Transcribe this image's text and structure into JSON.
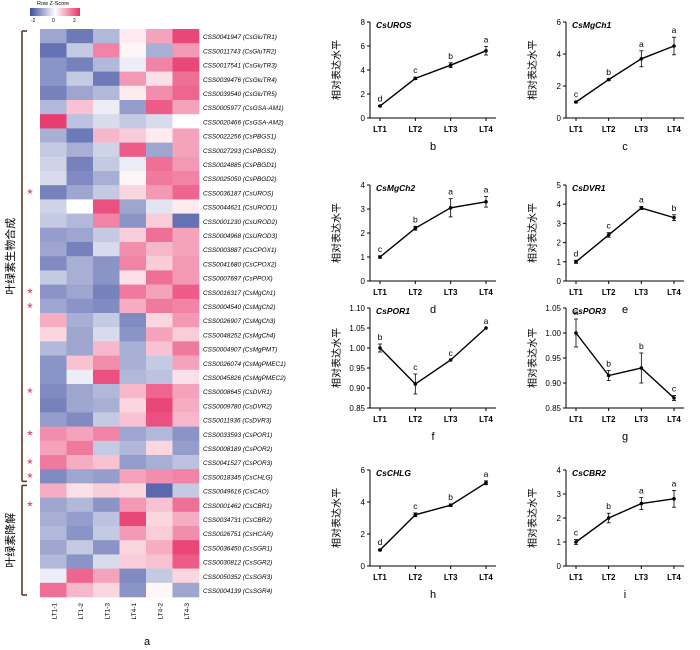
{
  "legend": {
    "title": "Row Z-Score",
    "ticks": [
      "-2",
      "0",
      "2"
    ]
  },
  "heatmap": {
    "columns": [
      "LT1-1",
      "LT1-2",
      "LT1-3",
      "LT4-1",
      "LT4-2",
      "LT4-3"
    ],
    "rows": [
      {
        "label": "CSS0041947 (CsGluTR1)",
        "v": [
          -1.0,
          -1.5,
          -0.8,
          0.2,
          0.9,
          1.8
        ],
        "star": false
      },
      {
        "label": "CSS0011743 (CsGluTR2)",
        "v": [
          -1.6,
          -0.6,
          1.2,
          0.1,
          -0.9,
          1.0
        ],
        "star": false
      },
      {
        "label": "CSS0017541 (CsGluTR3)",
        "v": [
          -1.2,
          -1.4,
          -0.8,
          -0.2,
          1.2,
          1.8
        ],
        "star": false
      },
      {
        "label": "CSS0039476 (CsGluTR4)",
        "v": [
          -1.2,
          -0.6,
          -1.5,
          1.0,
          0.3,
          1.4
        ],
        "star": false
      },
      {
        "label": "CSS0039540 (CsGluTR5)",
        "v": [
          -1.4,
          -1.0,
          -0.8,
          0.2,
          1.1,
          1.5
        ],
        "star": false
      },
      {
        "label": "CSS0005977 (CsGSA-AM1)",
        "v": [
          -0.8,
          0.6,
          -0.2,
          -1.1,
          1.6,
          0.9
        ],
        "star": false
      },
      {
        "label": "CSS0020466 (CsGSA-AM2)",
        "v": [
          1.9,
          -0.7,
          -0.4,
          -0.6,
          -0.4,
          0.0
        ],
        "star": false
      },
      {
        "label": "CSS0022256 (CsPBGS1)",
        "v": [
          -0.9,
          -1.5,
          0.7,
          0.5,
          0.2,
          0.9
        ],
        "star": false
      },
      {
        "label": "CSS0027293 (CsPBGS2)",
        "v": [
          -0.6,
          -0.9,
          -0.5,
          1.6,
          -1.0,
          0.9
        ],
        "star": false
      },
      {
        "label": "CSS0024885 (CsPBGD1)",
        "v": [
          -0.5,
          -1.4,
          -0.6,
          -0.2,
          1.4,
          1.0
        ],
        "star": false
      },
      {
        "label": "CSS0025050 (CsPBGD2)",
        "v": [
          -0.4,
          -1.3,
          -0.9,
          0.1,
          1.3,
          1.2
        ],
        "star": false
      },
      {
        "label": "CSS0036187 (CsUROS)",
        "v": [
          -1.4,
          -1.0,
          -0.6,
          0.4,
          1.0,
          1.5
        ],
        "star": true
      },
      {
        "label": "CSS0044621 (CsUROD1)",
        "v": [
          -0.5,
          0.0,
          1.7,
          -1.0,
          -0.3,
          0.2
        ],
        "star": false
      },
      {
        "label": "CSS0001230 (CsUROD2)",
        "v": [
          -0.6,
          -0.8,
          1.2,
          -1.2,
          0.5,
          -1.6
        ],
        "star": false
      },
      {
        "label": "CSS0004968 (CsUROD3)",
        "v": [
          -1.1,
          -1.0,
          -0.6,
          0.5,
          1.4,
          0.9
        ],
        "star": false
      },
      {
        "label": "CSS0003887 (CsCPOX1)",
        "v": [
          -1.0,
          -1.4,
          -0.4,
          1.1,
          0.7,
          0.9
        ],
        "star": false
      },
      {
        "label": "CSS0041680 (CsCPOX2)",
        "v": [
          -1.3,
          -0.9,
          -1.2,
          1.2,
          0.5,
          1.0
        ],
        "star": false
      },
      {
        "label": "CSS0007697 (CsPPOX)",
        "v": [
          -0.6,
          -0.9,
          -1.2,
          0.3,
          1.4,
          1.0
        ],
        "star": false
      },
      {
        "label": "CSS0016317 (CsMgCh1)",
        "v": [
          -1.2,
          -1.0,
          -1.4,
          1.3,
          0.9,
          1.6
        ],
        "star": true
      },
      {
        "label": "CSS0004540 (CsMgCh2)",
        "v": [
          -1.0,
          -1.2,
          -1.3,
          0.8,
          1.3,
          1.2
        ],
        "star": true
      },
      {
        "label": "CSS0026907 (CsMgCh3)",
        "v": [
          0.8,
          -0.9,
          -0.6,
          -1.3,
          0.4,
          1.0
        ],
        "star": false
      },
      {
        "label": "CSS0048252 (CsMgCh4)",
        "v": [
          0.4,
          -1.0,
          -0.4,
          -1.2,
          0.9,
          0.5
        ],
        "star": false
      },
      {
        "label": "CSS0004907 (CsMgPMT)",
        "v": [
          -0.8,
          -1.0,
          0.7,
          -0.9,
          0.6,
          1.3
        ],
        "star": false
      },
      {
        "label": "CSS0026074 (CsMgPMEC1)",
        "v": [
          -1.2,
          0.6,
          1.1,
          -0.9,
          -0.6,
          0.9
        ],
        "star": false
      },
      {
        "label": "CSS0045826 (CsMgPMEC2)",
        "v": [
          -1.2,
          -0.2,
          1.7,
          -0.8,
          -0.7,
          0.3
        ],
        "star": false
      },
      {
        "label": "CSS0008645 (CsDVR1)",
        "v": [
          -1.3,
          -1.0,
          -0.8,
          0.7,
          1.5,
          0.9
        ],
        "star": true
      },
      {
        "label": "CSS0009780 (CsDVR2)",
        "v": [
          -1.4,
          -1.0,
          -0.9,
          0.4,
          1.8,
          0.8
        ],
        "star": false
      },
      {
        "label": "CSS0011936 (CsDVR3)",
        "v": [
          -1.1,
          -1.3,
          -0.6,
          0.6,
          1.7,
          0.7
        ],
        "star": false
      },
      {
        "label": "CSS0033593 (CsPOR1)",
        "v": [
          1.1,
          0.9,
          1.2,
          -1.0,
          -0.8,
          -1.2
        ],
        "star": true
      },
      {
        "label": "CSS0008189 (CsPOR2)",
        "v": [
          0.9,
          1.3,
          -0.6,
          -0.8,
          0.4,
          -1.1
        ],
        "star": false
      },
      {
        "label": "CSS0041527 (CsPOR3)",
        "v": [
          1.3,
          0.8,
          0.6,
          -1.1,
          -0.9,
          -0.7
        ],
        "star": true
      },
      {
        "label": "CSS0018345 (CsCHLG)",
        "v": [
          -1.3,
          -1.0,
          -1.1,
          0.9,
          1.1,
          1.2
        ],
        "star": true
      },
      {
        "label": "CSS0049616 (CsCAO)",
        "v": [
          0.8,
          0.3,
          0.5,
          0.4,
          -1.7,
          -0.6
        ],
        "star": false
      },
      {
        "label": "CSS0001462 (CsCBR1)",
        "v": [
          -1.0,
          -0.8,
          -1.2,
          1.0,
          0.6,
          1.4
        ],
        "star": true
      },
      {
        "label": "CSS0034731 (CsCBR2)",
        "v": [
          -0.9,
          -1.1,
          -0.7,
          1.8,
          0.4,
          0.8
        ],
        "star": false
      },
      {
        "label": "CSS0026751 (CsHCAR)",
        "v": [
          -0.8,
          -1.2,
          -0.6,
          1.0,
          0.5,
          1.1
        ],
        "star": false
      },
      {
        "label": "CSS0036450 (CsSGR1)",
        "v": [
          -1.0,
          -0.6,
          -1.2,
          0.4,
          0.8,
          1.8
        ],
        "star": false
      },
      {
        "label": "CSS0030812 (CsSGR2)",
        "v": [
          -0.8,
          -1.2,
          -0.4,
          0.5,
          0.6,
          1.6
        ],
        "star": false
      },
      {
        "label": "CSS0050352 (CsSGR3)",
        "v": [
          -0.2,
          1.5,
          0.9,
          -1.3,
          -0.6,
          0.4
        ],
        "star": false
      },
      {
        "label": "CSS0004139 (CsSGR4)",
        "v": [
          1.4,
          0.7,
          0.4,
          -1.2,
          0.1,
          -1.0
        ],
        "star": false
      }
    ],
    "groups": [
      {
        "label": "叶绿素生物合成",
        "from": 0,
        "to": 31
      },
      {
        "label": "叶绿素降解",
        "from": 32,
        "to": 39
      }
    ],
    "panel_letter": "a"
  },
  "ylabel": "相对表达水平",
  "chart_data": [
    {
      "type": "line",
      "title": "CsUROS",
      "letter": "b",
      "categories": [
        "LT1",
        "LT2",
        "LT3",
        "LT4"
      ],
      "values": [
        1.0,
        3.3,
        4.4,
        5.6
      ],
      "errors": [
        0.05,
        0.1,
        0.2,
        0.35
      ],
      "sig": [
        "d",
        "c",
        "b",
        "a"
      ],
      "ylim": [
        0,
        8
      ],
      "yticks": [
        0,
        2,
        4,
        6,
        8
      ]
    },
    {
      "type": "line",
      "title": "CsMgCh1",
      "letter": "c",
      "categories": [
        "LT1",
        "LT2",
        "LT3",
        "LT4"
      ],
      "values": [
        1.0,
        2.4,
        3.7,
        4.5
      ],
      "errors": [
        0.05,
        0.05,
        0.5,
        0.55
      ],
      "sig": [
        "c",
        "b",
        "a",
        "a"
      ],
      "ylim": [
        0,
        6
      ],
      "yticks": [
        0,
        2,
        4,
        6
      ]
    },
    {
      "type": "line",
      "title": "CsMgCh2",
      "letter": "d",
      "categories": [
        "LT1",
        "LT2",
        "LT3",
        "LT4"
      ],
      "values": [
        1.0,
        2.2,
        3.05,
        3.3
      ],
      "errors": [
        0.05,
        0.08,
        0.38,
        0.22
      ],
      "sig": [
        "c",
        "b",
        "a",
        "a"
      ],
      "ylim": [
        0,
        4
      ],
      "yticks": [
        0,
        1,
        2,
        3,
        4
      ]
    },
    {
      "type": "line",
      "title": "CsDVR1",
      "letter": "e",
      "categories": [
        "LT1",
        "LT2",
        "LT3",
        "LT4"
      ],
      "values": [
        1.0,
        2.4,
        3.8,
        3.3
      ],
      "errors": [
        0.08,
        0.12,
        0.08,
        0.15
      ],
      "sig": [
        "d",
        "c",
        "a",
        "b"
      ],
      "ylim": [
        0,
        5
      ],
      "yticks": [
        0,
        1,
        2,
        3,
        4,
        5
      ]
    },
    {
      "type": "line",
      "title": "CsPOR1",
      "letter": "f",
      "categories": [
        "LT1",
        "LT2",
        "LT3",
        "LT4"
      ],
      "values": [
        1.0,
        0.91,
        0.97,
        1.05
      ],
      "errors": [
        0.01,
        0.025,
        0.0,
        0.0
      ],
      "sig": [
        "b",
        "c",
        "c",
        "a"
      ],
      "ylim": [
        0.85,
        1.1
      ],
      "yticks": [
        0.85,
        0.9,
        0.95,
        1.0,
        1.05,
        1.1
      ]
    },
    {
      "type": "line",
      "title": "CsPOR3",
      "letter": "g",
      "categories": [
        "LT1",
        "LT2",
        "LT3",
        "LT4"
      ],
      "values": [
        1.0,
        0.915,
        0.93,
        0.87
      ],
      "errors": [
        0.028,
        0.01,
        0.03,
        0.005
      ],
      "sig": [
        "a",
        "b",
        "b",
        "c"
      ],
      "ylim": [
        0.85,
        1.05
      ],
      "yticks": [
        0.85,
        0.9,
        0.95,
        1.0,
        1.05
      ]
    },
    {
      "type": "line",
      "title": "CsCHLG",
      "letter": "h",
      "categories": [
        "LT1",
        "LT2",
        "LT3",
        "LT4"
      ],
      "values": [
        1.0,
        3.2,
        3.8,
        5.2
      ],
      "errors": [
        0.05,
        0.12,
        0.08,
        0.12
      ],
      "sig": [
        "d",
        "c",
        "b",
        "a"
      ],
      "ylim": [
        0,
        6
      ],
      "yticks": [
        0,
        2,
        4,
        6
      ]
    },
    {
      "type": "line",
      "title": "CsCBR2",
      "letter": "i",
      "categories": [
        "LT1",
        "LT2",
        "LT3",
        "LT4"
      ],
      "values": [
        1.0,
        2.0,
        2.6,
        2.8
      ],
      "errors": [
        0.1,
        0.2,
        0.25,
        0.35
      ],
      "sig": [
        "c",
        "b",
        "a",
        "a"
      ],
      "ylim": [
        0,
        4
      ],
      "yticks": [
        0,
        1,
        2,
        3,
        4
      ]
    }
  ]
}
